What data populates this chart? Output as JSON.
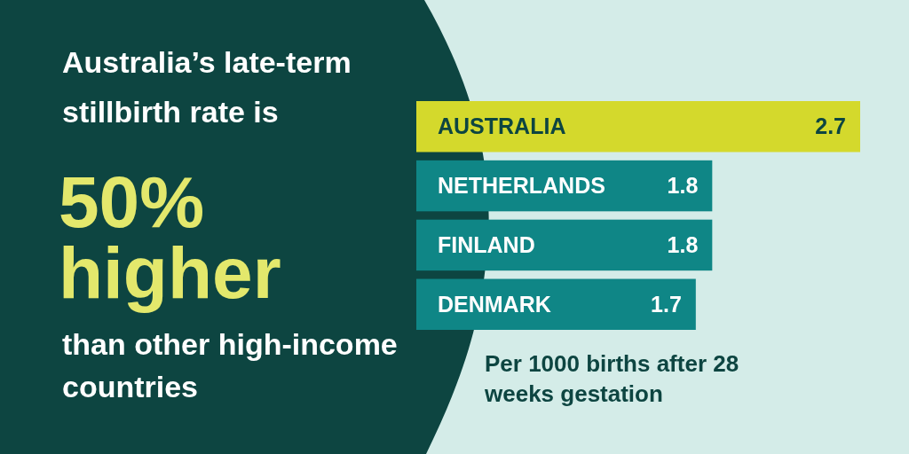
{
  "chart_data": {
    "type": "bar",
    "orientation": "horizontal",
    "title": "Australia’s late-term stillbirth rate is",
    "annotations": [
      "50% higher",
      "than other high-income countries",
      "Per 1000 births after 28 weeks gestation"
    ],
    "categories": [
      "AUSTRALIA",
      "NETHERLANDS",
      "FINLAND",
      "DENMARK"
    ],
    "values": [
      2.7,
      1.8,
      1.8,
      1.7
    ],
    "colors": [
      "#d4d92c",
      "#0f8686",
      "#0f8686",
      "#0f8686"
    ],
    "data_labels": true
  }
}
